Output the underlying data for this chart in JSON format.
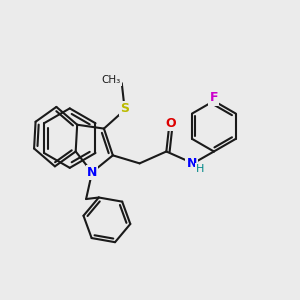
{
  "background_color": "#ebebeb",
  "bond_color": "#1a1a1a",
  "bond_width": 1.5,
  "figsize": [
    3.0,
    3.0
  ],
  "dpi": 100,
  "atom_labels": {
    "N": {
      "color": "#0000ff",
      "fontsize": 9,
      "fontweight": "bold"
    },
    "O": {
      "color": "#ff0000",
      "fontsize": 9,
      "fontweight": "bold"
    },
    "S": {
      "color": "#cccc00",
      "fontsize": 9,
      "fontweight": "bold"
    },
    "F": {
      "color": "#cc00cc",
      "fontsize": 9,
      "fontweight": "bold"
    },
    "H": {
      "color": "#008888",
      "fontsize": 8,
      "fontweight": "normal"
    },
    "C": {
      "color": "#1a1a1a",
      "fontsize": 8,
      "fontweight": "normal"
    }
  }
}
